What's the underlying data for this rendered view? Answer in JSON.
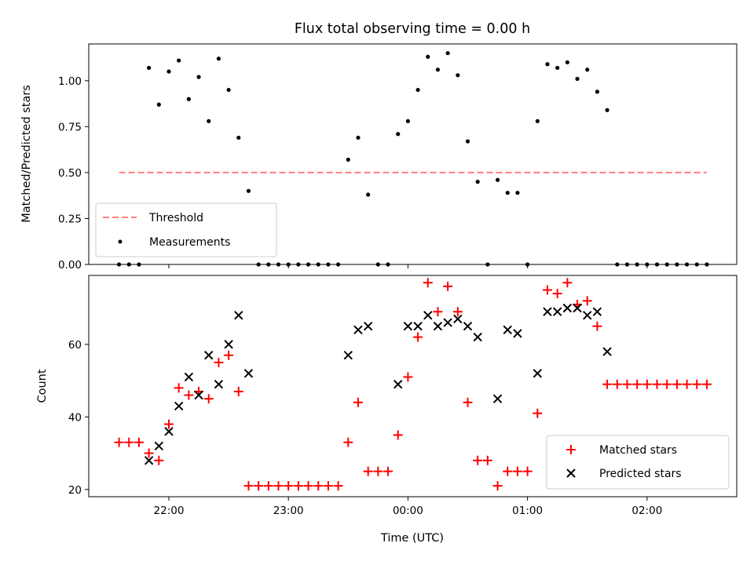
{
  "chart_data": [
    {
      "type": "scatter",
      "title": "Flux total observing time = 0.00 h",
      "xlabel": "",
      "ylabel": "Matched/Predicted stars",
      "ylim": [
        0,
        1.2
      ],
      "yticks": [
        0.0,
        0.25,
        0.5,
        0.75,
        1.0
      ],
      "ytick_labels": [
        "0.00",
        "0.25",
        "0.50",
        "0.75",
        "1.00"
      ],
      "xlim_hours": [
        21.33,
        26.75
      ],
      "legend_placement": "lower-left",
      "legend": [
        "Threshold",
        "Measurements"
      ],
      "threshold": {
        "name": "Threshold",
        "value": 0.5,
        "x_start": "21:35",
        "x_end": "02:30",
        "color": "#ff7f7f"
      },
      "series": [
        {
          "name": "Measurements",
          "color": "#000000",
          "x": [
            "21:35",
            "21:40",
            "21:45",
            "21:50",
            "21:55",
            "22:00",
            "22:05",
            "22:10",
            "22:15",
            "22:20",
            "22:25",
            "22:30",
            "22:35",
            "22:40",
            "22:45",
            "22:50",
            "22:55",
            "23:00",
            "23:05",
            "23:10",
            "23:15",
            "23:20",
            "23:25",
            "23:30",
            "23:35",
            "23:40",
            "23:45",
            "23:50",
            "23:55",
            "00:00",
            "00:05",
            "00:10",
            "00:15",
            "00:20",
            "00:25",
            "00:30",
            "00:35",
            "00:40",
            "00:45",
            "00:50",
            "00:55",
            "01:00",
            "01:05",
            "01:10",
            "01:15",
            "01:20",
            "01:25",
            "01:30",
            "01:35",
            "01:40",
            "01:45",
            "01:50",
            "01:55",
            "02:00",
            "02:05",
            "02:10",
            "02:15",
            "02:20",
            "02:25",
            "02:30"
          ],
          "y": [
            0.0,
            0.0,
            0.0,
            1.07,
            0.87,
            1.05,
            1.11,
            0.9,
            1.02,
            0.78,
            1.12,
            0.95,
            0.69,
            0.4,
            0.0,
            0.0,
            0.0,
            0.0,
            0.0,
            0.0,
            0.0,
            0.0,
            0.0,
            0.57,
            0.69,
            0.38,
            0.0,
            0.0,
            0.71,
            0.78,
            0.95,
            1.13,
            1.06,
            1.15,
            1.03,
            0.67,
            0.45,
            0.0,
            0.46,
            0.39,
            0.39,
            0.0,
            0.78,
            1.09,
            1.07,
            1.1,
            1.01,
            1.06,
            0.94,
            0.84,
            0.0,
            0.0,
            0.0,
            0.0,
            0.0,
            0.0,
            0.0,
            0.0,
            0.0,
            0.0
          ]
        }
      ]
    },
    {
      "type": "scatter",
      "title": "",
      "xlabel": "Time (UTC)",
      "ylabel": "Count",
      "ylim": [
        18,
        79
      ],
      "yticks": [
        20,
        40,
        60
      ],
      "ytick_labels": [
        "20",
        "40",
        "60"
      ],
      "xlim_hours": [
        21.33,
        26.75
      ],
      "xticks_hours": [
        22,
        23,
        24,
        25,
        26
      ],
      "xtick_labels": [
        "22:00",
        "23:00",
        "00:00",
        "01:00",
        "02:00"
      ],
      "legend_placement": "lower-right",
      "legend": [
        "Matched stars",
        "Predicted stars"
      ],
      "series": [
        {
          "name": "Matched stars",
          "marker": "+",
          "color": "#ff0000",
          "x": [
            "21:35",
            "21:40",
            "21:45",
            "21:50",
            "21:55",
            "22:00",
            "22:05",
            "22:10",
            "22:15",
            "22:20",
            "22:25",
            "22:30",
            "22:35",
            "22:40",
            "22:45",
            "22:50",
            "22:55",
            "23:00",
            "23:05",
            "23:10",
            "23:15",
            "23:20",
            "23:25",
            "23:30",
            "23:35",
            "23:40",
            "23:45",
            "23:50",
            "23:55",
            "00:00",
            "00:05",
            "00:10",
            "00:15",
            "00:20",
            "00:25",
            "00:30",
            "00:35",
            "00:40",
            "00:45",
            "00:50",
            "00:55",
            "01:00",
            "01:05",
            "01:10",
            "01:15",
            "01:20",
            "01:25",
            "01:30",
            "01:35",
            "01:40",
            "01:45",
            "01:50",
            "01:55",
            "02:00",
            "02:05",
            "02:10",
            "02:15",
            "02:20",
            "02:25",
            "02:30"
          ],
          "y": [
            33,
            33,
            33,
            30,
            28,
            38,
            48,
            46,
            47,
            45,
            55,
            57,
            47,
            21,
            21,
            21,
            21,
            21,
            21,
            21,
            21,
            21,
            21,
            33,
            44,
            25,
            25,
            25,
            35,
            51,
            62,
            77,
            69,
            76,
            69,
            44,
            28,
            28,
            21,
            25,
            25,
            25,
            41,
            75,
            74,
            77,
            71,
            72,
            65,
            49,
            49,
            49,
            49,
            49,
            49,
            49,
            49,
            49,
            49,
            49
          ]
        },
        {
          "name": "Predicted stars",
          "marker": "x",
          "color": "#000000",
          "x": [
            "21:50",
            "21:55",
            "22:00",
            "22:05",
            "22:10",
            "22:15",
            "22:20",
            "22:25",
            "22:30",
            "22:35",
            "22:40",
            "23:30",
            "23:35",
            "23:40",
            "23:55",
            "00:00",
            "00:05",
            "00:10",
            "00:15",
            "00:20",
            "00:25",
            "00:30",
            "00:35",
            "00:45",
            "00:50",
            "00:55",
            "01:05",
            "01:10",
            "01:15",
            "01:20",
            "01:25",
            "01:30",
            "01:35",
            "01:40"
          ],
          "y": [
            28,
            32,
            36,
            43,
            51,
            46,
            57,
            49,
            60,
            68,
            52,
            57,
            64,
            65,
            49,
            65,
            65,
            68,
            65,
            66,
            67,
            65,
            62,
            45,
            64,
            63,
            52,
            69,
            69,
            70,
            70,
            68,
            69,
            58
          ]
        }
      ]
    }
  ]
}
